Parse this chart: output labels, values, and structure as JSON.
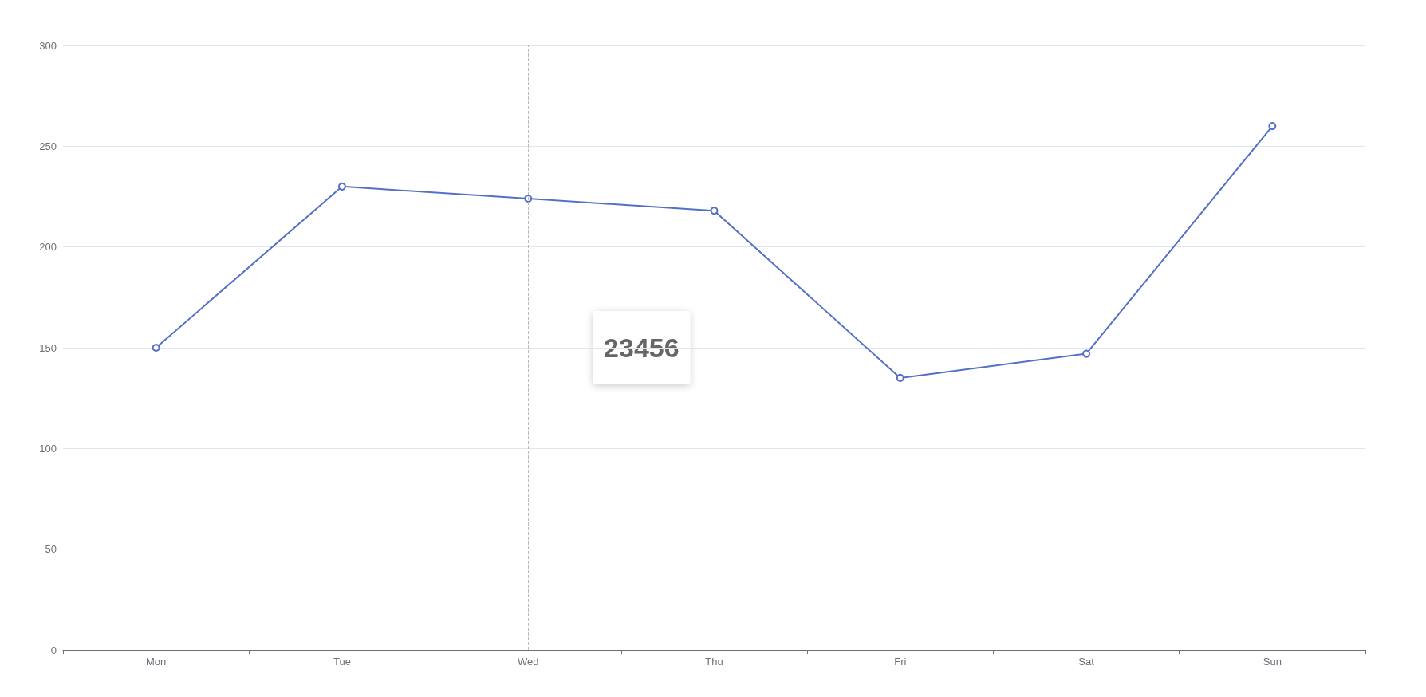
{
  "chart_data": {
    "type": "line",
    "categories": [
      "Mon",
      "Tue",
      "Wed",
      "Thu",
      "Fri",
      "Sat",
      "Sun"
    ],
    "series": [
      {
        "color": "#5470c6",
        "values": [
          150,
          230,
          224,
          218,
          135,
          147,
          260
        ]
      }
    ],
    "ylim": [
      0,
      300
    ],
    "yticks": [
      0,
      50,
      100,
      150,
      200,
      250,
      300
    ],
    "grid": "y",
    "marker": "circle",
    "line_style": "solid",
    "ref_lines": [
      {
        "axis": "x",
        "value": "Wed",
        "color": "#bbbbbb",
        "line_style": "dashed"
      }
    ],
    "annotations": [
      "23456"
    ]
  }
}
